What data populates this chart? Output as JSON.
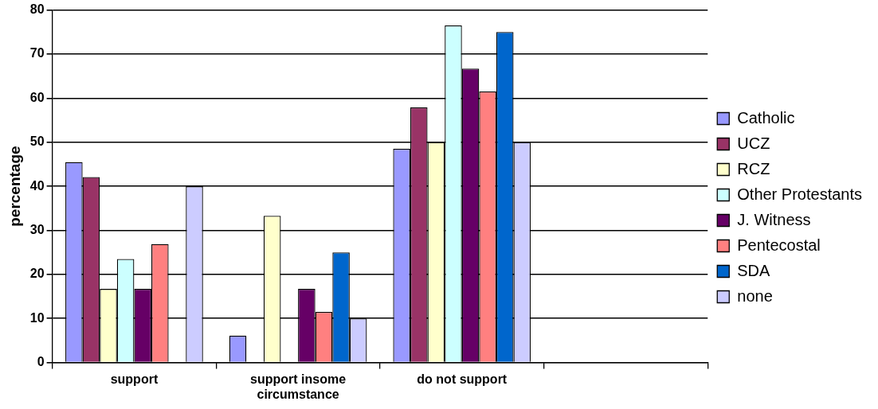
{
  "chart_data": {
    "type": "bar",
    "ylabel": "percentage",
    "categories": [
      "support",
      "support insome circumstance",
      "do not support",
      null
    ],
    "series": [
      {
        "name": "Catholic",
        "color": "#9999ff",
        "values": [
          45.5,
          6.1,
          48.5,
          null
        ]
      },
      {
        "name": "UCZ",
        "color": "#993366",
        "values": [
          42.1,
          0,
          57.9,
          null
        ]
      },
      {
        "name": "RCZ",
        "color": "#ffffcc",
        "values": [
          16.7,
          33.3,
          50,
          null
        ]
      },
      {
        "name": "Other Protestants",
        "color": "#ccffff",
        "values": [
          23.5,
          0,
          76.5,
          null
        ]
      },
      {
        "name": "J. Witness",
        "color": "#660066",
        "values": [
          16.7,
          16.7,
          66.7,
          null
        ]
      },
      {
        "name": "Pentecostal",
        "color": "#ff8080",
        "values": [
          26.9,
          11.5,
          61.5,
          null
        ]
      },
      {
        "name": "SDA",
        "color": "#0066cc",
        "values": [
          0,
          25,
          75,
          null
        ]
      },
      {
        "name": "none",
        "color": "#ccccff",
        "values": [
          40,
          10,
          50,
          null
        ]
      }
    ],
    "ylim": [
      0,
      80
    ],
    "yticks": [
      0,
      10,
      20,
      30,
      40,
      50,
      60,
      70,
      80
    ],
    "grid": "y",
    "legend": "right"
  }
}
